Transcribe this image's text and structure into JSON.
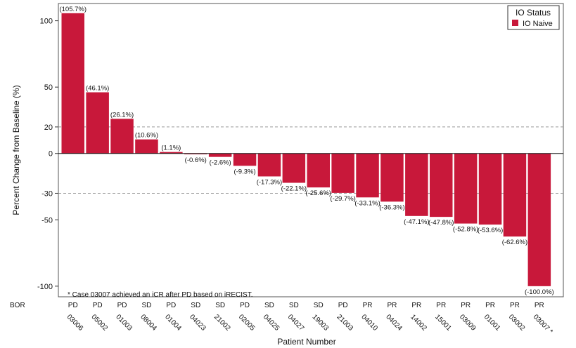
{
  "chart_data": {
    "type": "bar",
    "xlabel": "Patient Number",
    "ylabel": "Percent Change from Baseline (%)",
    "y_ticks": [
      100,
      50,
      20,
      0,
      -30,
      -50,
      -100
    ],
    "ylim": [
      -108,
      113
    ],
    "reference_lines": [
      20,
      -30
    ],
    "legend": {
      "title": "IO Status",
      "items": [
        {
          "label": "IO Naive",
          "color": "#c8183a"
        }
      ],
      "placement": "top-right"
    },
    "bor_label": "BOR",
    "footnote": "* Case 03007 achieved an iCR after PD based on iRECIST.",
    "categories": [
      "03006",
      "05002",
      "01003",
      "08004",
      "01004",
      "04023",
      "21002",
      "02005",
      "04025",
      "04027",
      "19003",
      "21003",
      "04010",
      "04024",
      "14002",
      "15001",
      "03009",
      "01001",
      "03002",
      "03007 *"
    ],
    "values": [
      105.7,
      46.1,
      26.1,
      10.6,
      1.1,
      -0.6,
      -2.6,
      -9.3,
      -17.3,
      -22.1,
      -25.6,
      -29.7,
      -33.1,
      -36.3,
      -47.1,
      -47.8,
      -52.8,
      -53.6,
      -62.6,
      -100.0
    ],
    "value_labels": [
      "(105.7%)",
      "(46.1%)",
      "(26.1%)",
      "(10.6%)",
      "(1.1%)",
      "(-0.6%)",
      "(-2.6%)",
      "(-9.3%)",
      "(-17.3%)",
      "(-22.1%)",
      "(-25.6%)",
      "(-29.7%)",
      "(-33.1%)",
      "(-36.3%)",
      "(-47.1%)",
      "(-47.8%)",
      "(-52.8%)",
      "(-53.6%)",
      "(-62.6%)",
      "(-100.0%)"
    ],
    "bor": [
      "PD",
      "PD",
      "PD",
      "SD",
      "PD",
      "SD",
      "SD",
      "PD",
      "SD",
      "SD",
      "SD",
      "PD",
      "PR",
      "PR",
      "PR",
      "PR",
      "PR",
      "PR",
      "PR",
      "PR"
    ],
    "bar_color": "#c8183a"
  }
}
